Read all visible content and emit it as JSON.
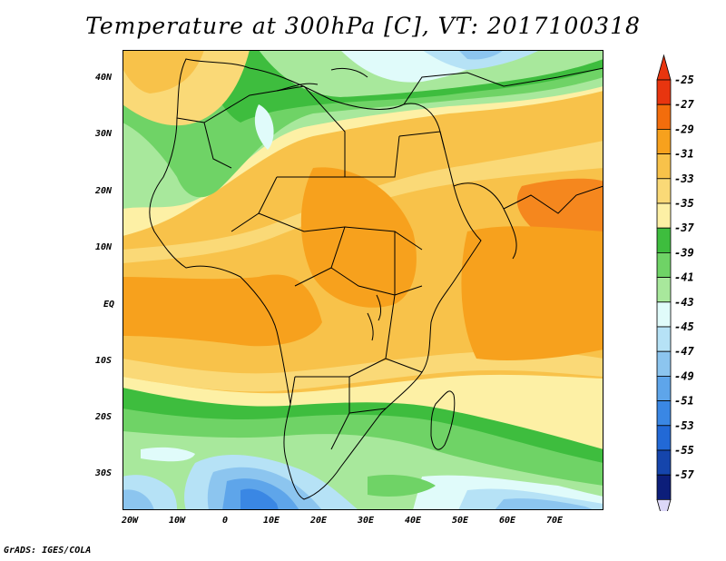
{
  "title": "Temperature at 300hPa [C], VT: 2017100318",
  "lat_labels": [
    "40N",
    "30N",
    "20N",
    "10N",
    "EQ",
    "10S",
    "20S",
    "30S"
  ],
  "lon_labels": [
    "20W",
    "10W",
    "0",
    "10E",
    "20E",
    "30E",
    "40E",
    "50E",
    "60E",
    "70E"
  ],
  "colorbar": {
    "labels": [
      "-25",
      "-27",
      "-29",
      "-31",
      "-33",
      "-35",
      "-37",
      "-39",
      "-41",
      "-43",
      "-45",
      "-47",
      "-49",
      "-51",
      "-53",
      "-55",
      "-57"
    ],
    "colors": [
      "#e8350f",
      "#f36d0c",
      "#f7a11d",
      "#f8c24a",
      "#fad977",
      "#fdf0a5",
      "#3ebd3e",
      "#6fd366",
      "#a8e89c",
      "#e0fbfa",
      "#b6e2f6",
      "#8cc5ef",
      "#5ea5ea",
      "#3a87e4",
      "#2269d6",
      "#1545ac",
      "#0c1e7a"
    ],
    "over_color": "#e8350f",
    "under_color": "#dcd8f8"
  },
  "credit": "GrADS: IGES/COLA"
}
